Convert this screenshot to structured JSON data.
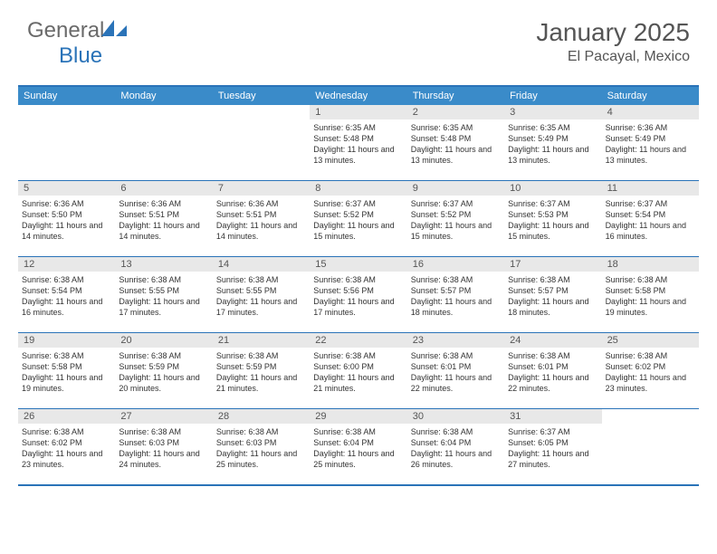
{
  "logo": {
    "text1": "General",
    "text2": "Blue"
  },
  "title": "January 2025",
  "location": "El Pacayal, Mexico",
  "colors": {
    "header_bg": "#3a8bc9",
    "border": "#2a73b8",
    "daynum_bg": "#e8e8e8",
    "text_gray": "#555555",
    "logo_gray": "#6a6a6a",
    "logo_blue": "#2a73b8"
  },
  "weekdays": [
    "Sunday",
    "Monday",
    "Tuesday",
    "Wednesday",
    "Thursday",
    "Friday",
    "Saturday"
  ],
  "weeks": [
    [
      null,
      null,
      null,
      {
        "n": "1",
        "sr": "6:35 AM",
        "ss": "5:48 PM",
        "dl": "11 hours and 13 minutes."
      },
      {
        "n": "2",
        "sr": "6:35 AM",
        "ss": "5:48 PM",
        "dl": "11 hours and 13 minutes."
      },
      {
        "n": "3",
        "sr": "6:35 AM",
        "ss": "5:49 PM",
        "dl": "11 hours and 13 minutes."
      },
      {
        "n": "4",
        "sr": "6:36 AM",
        "ss": "5:49 PM",
        "dl": "11 hours and 13 minutes."
      }
    ],
    [
      {
        "n": "5",
        "sr": "6:36 AM",
        "ss": "5:50 PM",
        "dl": "11 hours and 14 minutes."
      },
      {
        "n": "6",
        "sr": "6:36 AM",
        "ss": "5:51 PM",
        "dl": "11 hours and 14 minutes."
      },
      {
        "n": "7",
        "sr": "6:36 AM",
        "ss": "5:51 PM",
        "dl": "11 hours and 14 minutes."
      },
      {
        "n": "8",
        "sr": "6:37 AM",
        "ss": "5:52 PM",
        "dl": "11 hours and 15 minutes."
      },
      {
        "n": "9",
        "sr": "6:37 AM",
        "ss": "5:52 PM",
        "dl": "11 hours and 15 minutes."
      },
      {
        "n": "10",
        "sr": "6:37 AM",
        "ss": "5:53 PM",
        "dl": "11 hours and 15 minutes."
      },
      {
        "n": "11",
        "sr": "6:37 AM",
        "ss": "5:54 PM",
        "dl": "11 hours and 16 minutes."
      }
    ],
    [
      {
        "n": "12",
        "sr": "6:38 AM",
        "ss": "5:54 PM",
        "dl": "11 hours and 16 minutes."
      },
      {
        "n": "13",
        "sr": "6:38 AM",
        "ss": "5:55 PM",
        "dl": "11 hours and 17 minutes."
      },
      {
        "n": "14",
        "sr": "6:38 AM",
        "ss": "5:55 PM",
        "dl": "11 hours and 17 minutes."
      },
      {
        "n": "15",
        "sr": "6:38 AM",
        "ss": "5:56 PM",
        "dl": "11 hours and 17 minutes."
      },
      {
        "n": "16",
        "sr": "6:38 AM",
        "ss": "5:57 PM",
        "dl": "11 hours and 18 minutes."
      },
      {
        "n": "17",
        "sr": "6:38 AM",
        "ss": "5:57 PM",
        "dl": "11 hours and 18 minutes."
      },
      {
        "n": "18",
        "sr": "6:38 AM",
        "ss": "5:58 PM",
        "dl": "11 hours and 19 minutes."
      }
    ],
    [
      {
        "n": "19",
        "sr": "6:38 AM",
        "ss": "5:58 PM",
        "dl": "11 hours and 19 minutes."
      },
      {
        "n": "20",
        "sr": "6:38 AM",
        "ss": "5:59 PM",
        "dl": "11 hours and 20 minutes."
      },
      {
        "n": "21",
        "sr": "6:38 AM",
        "ss": "5:59 PM",
        "dl": "11 hours and 21 minutes."
      },
      {
        "n": "22",
        "sr": "6:38 AM",
        "ss": "6:00 PM",
        "dl": "11 hours and 21 minutes."
      },
      {
        "n": "23",
        "sr": "6:38 AM",
        "ss": "6:01 PM",
        "dl": "11 hours and 22 minutes."
      },
      {
        "n": "24",
        "sr": "6:38 AM",
        "ss": "6:01 PM",
        "dl": "11 hours and 22 minutes."
      },
      {
        "n": "25",
        "sr": "6:38 AM",
        "ss": "6:02 PM",
        "dl": "11 hours and 23 minutes."
      }
    ],
    [
      {
        "n": "26",
        "sr": "6:38 AM",
        "ss": "6:02 PM",
        "dl": "11 hours and 23 minutes."
      },
      {
        "n": "27",
        "sr": "6:38 AM",
        "ss": "6:03 PM",
        "dl": "11 hours and 24 minutes."
      },
      {
        "n": "28",
        "sr": "6:38 AM",
        "ss": "6:03 PM",
        "dl": "11 hours and 25 minutes."
      },
      {
        "n": "29",
        "sr": "6:38 AM",
        "ss": "6:04 PM",
        "dl": "11 hours and 25 minutes."
      },
      {
        "n": "30",
        "sr": "6:38 AM",
        "ss": "6:04 PM",
        "dl": "11 hours and 26 minutes."
      },
      {
        "n": "31",
        "sr": "6:37 AM",
        "ss": "6:05 PM",
        "dl": "11 hours and 27 minutes."
      },
      null
    ]
  ],
  "labels": {
    "sunrise": "Sunrise:",
    "sunset": "Sunset:",
    "daylight": "Daylight:"
  }
}
